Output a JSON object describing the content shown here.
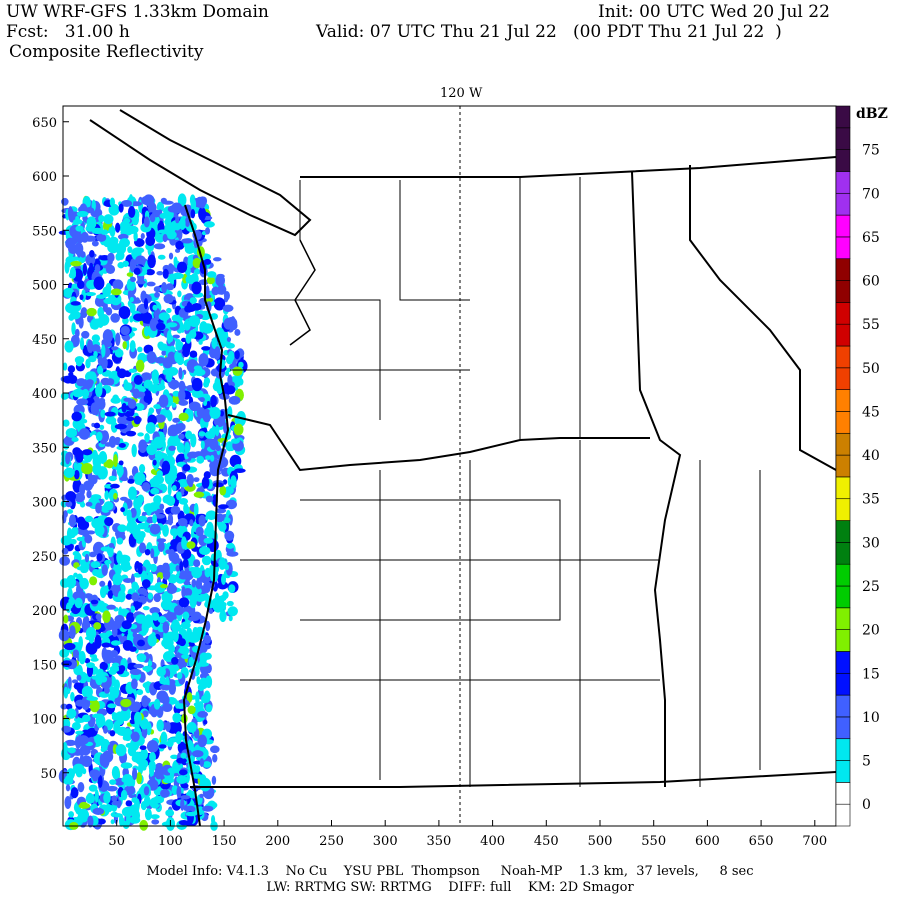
{
  "header": {
    "title": "UW WRF-GFS 1.33km Domain",
    "init": "Init: 00 UTC Wed 20 Jul 22",
    "fcst": "Fcst:   31.00 h",
    "valid": "Valid: 07 UTC Thu 21 Jul 22   (00 PDT Thu 21 Jul 22  )",
    "field": "Composite Reflectivity"
  },
  "map": {
    "meridian_label": "120 W",
    "x_ticks": [
      "50",
      "100",
      "150",
      "200",
      "250",
      "300",
      "350",
      "400",
      "450",
      "500",
      "550",
      "600",
      "650",
      "700"
    ],
    "y_ticks": [
      "50",
      "100",
      "150",
      "200",
      "250",
      "300",
      "350",
      "400",
      "450",
      "500",
      "550",
      "600",
      "650"
    ]
  },
  "colorbar": {
    "unit": "dBZ",
    "labels": [
      "0",
      "5",
      "10",
      "15",
      "20",
      "25",
      "30",
      "35",
      "40",
      "45",
      "50",
      "55",
      "60",
      "65",
      "70",
      "75"
    ],
    "colors": [
      "#ffffff",
      "#00e8f0",
      "#4060ff",
      "#0010ff",
      "#80f000",
      "#00cc00",
      "#008010",
      "#f0f000",
      "#cc8000",
      "#ff8000",
      "#f04000",
      "#d00000",
      "#900000",
      "#ff00ff",
      "#a030f0",
      "#3a0a45"
    ]
  },
  "footer": {
    "line1": "Model Info: V4.1.3    No Cu    YSU PBL  Thompson     Noah-MP    1.3 km,  37 levels,     8 sec",
    "line2": "LW: RRTMG SW: RRTMG    DIFF: full    KM: 2D Smagor"
  }
}
